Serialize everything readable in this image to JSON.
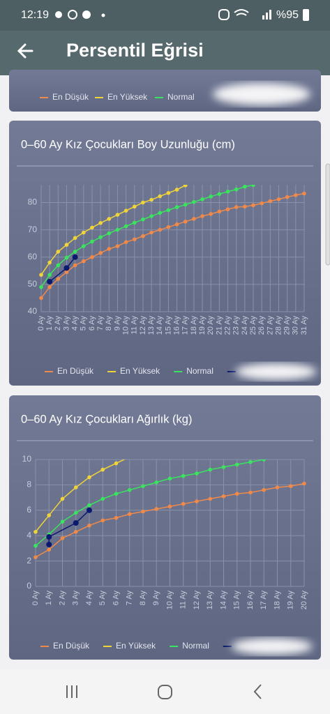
{
  "status_bar": {
    "time": "12:19",
    "battery": "%95"
  },
  "app_bar": {
    "title": "Persentil Eğrisi"
  },
  "top_card": {
    "legend": [
      "En Düşük",
      "En Yüksek",
      "Normal"
    ]
  },
  "chart_data": [
    {
      "type": "line",
      "title": "0–60 Ay Kız Çocukları Boy Uzunluğu (cm)",
      "categories": [
        "0 Ay",
        "1 Ay",
        "2 Ay",
        "3 Ay",
        "4 Ay",
        "5 Ay",
        "6 Ay",
        "7 Ay",
        "8 Ay",
        "9 Ay",
        "10 Ay",
        "11 Ay",
        "12 Ay",
        "13 Ay",
        "14 Ay",
        "15 Ay",
        "16 Ay",
        "17 Ay",
        "18 Ay",
        "19 Ay",
        "20 Ay",
        "21 Ay",
        "22 Ay",
        "23 Ay",
        "24 Ay",
        "25 Ay",
        "26 Ay",
        "27 Ay",
        "28 Ay",
        "29 Ay",
        "30 Ay",
        "31 Ay"
      ],
      "series": [
        {
          "name": "En Düşük",
          "color": "#f08a4b",
          "values": [
            45,
            49,
            52,
            54.5,
            57,
            58.5,
            60,
            61.5,
            63,
            64,
            65.5,
            66.5,
            67.7,
            69,
            70,
            71,
            72,
            73,
            74,
            75,
            75.8,
            76.7,
            77.5,
            78.3,
            78.5,
            79,
            79.7,
            80.5,
            81.2,
            82,
            82.7,
            83.3
          ]
        },
        {
          "name": "En Yüksek",
          "color": "#f0d43a",
          "values": [
            53.5,
            58,
            62,
            64.5,
            67,
            69,
            70.8,
            72.5,
            74,
            75.5,
            77,
            78.5,
            80,
            81,
            82.3,
            83.5,
            84.7,
            86.3,
            null,
            null,
            null,
            null,
            null,
            null,
            null,
            null,
            null,
            null,
            null,
            null,
            null,
            null
          ]
        },
        {
          "name": "Normal",
          "color": "#3ae45e",
          "values": [
            49,
            53.5,
            57,
            59.8,
            62,
            64,
            65.7,
            67.3,
            68.7,
            70,
            71.3,
            72.6,
            73.8,
            75,
            76.2,
            77.2,
            78.3,
            79.2,
            80.2,
            81.2,
            82.2,
            83.1,
            84,
            84.8,
            85.8,
            86.4,
            null,
            null,
            null,
            null,
            null,
            null
          ]
        },
        {
          "color": "#0b1a6e",
          "x": [
            "1 Ay",
            "3 Ay",
            "4 Ay"
          ],
          "values": [
            51,
            56,
            60
          ]
        }
      ],
      "ylim": [
        40,
        86.5
      ],
      "yticks": [
        40,
        50,
        60,
        70,
        80
      ],
      "grid": true,
      "legend": "bottom"
    },
    {
      "type": "line",
      "title": "0–60 Ay Kız Çocukları Ağırlık (kg)",
      "categories": [
        "0 Ay",
        "1 Ay",
        "2 Ay",
        "3 Ay",
        "4 Ay",
        "5 Ay",
        "6 Ay",
        "7 Ay",
        "8 Ay",
        "9 Ay",
        "10 Ay",
        "11 Ay",
        "12 Ay",
        "13 Ay",
        "14 Ay",
        "15 Ay",
        "16 Ay",
        "17 Ay",
        "18 Ay",
        "19 Ay",
        "20 Ay"
      ],
      "series": [
        {
          "name": "En Düşük",
          "color": "#f08a4b",
          "values": [
            2.3,
            2.9,
            3.8,
            4.3,
            4.8,
            5.2,
            5.4,
            5.7,
            5.9,
            6.1,
            6.3,
            6.5,
            6.7,
            6.9,
            7.1,
            7.3,
            7.4,
            7.6,
            7.8,
            7.9,
            8.1
          ]
        },
        {
          "name": "En Yüksek",
          "color": "#f0d43a",
          "values": [
            4.3,
            5.6,
            6.9,
            7.8,
            8.6,
            9.2,
            9.7,
            10.2,
            null,
            null,
            null,
            null,
            null,
            null,
            null,
            null,
            null,
            null,
            null,
            null,
            null
          ]
        },
        {
          "name": "Normal",
          "color": "#3ae45e",
          "values": [
            3.2,
            4.1,
            5.1,
            5.8,
            6.4,
            6.9,
            7.3,
            7.6,
            7.9,
            8.2,
            8.5,
            8.7,
            8.9,
            9.2,
            9.4,
            9.6,
            9.8,
            10,
            null,
            null,
            null
          ]
        },
        {
          "color": "#0b1a6e",
          "x": [
            "1 Ay",
            "1 Ay",
            "3 Ay",
            "4 Ay"
          ],
          "values": [
            3.3,
            3.9,
            5.0,
            6.0
          ]
        }
      ],
      "ylim": [
        0,
        10
      ],
      "yticks": [
        0,
        2,
        4,
        6,
        8,
        10
      ],
      "grid": true,
      "legend": "bottom"
    }
  ]
}
